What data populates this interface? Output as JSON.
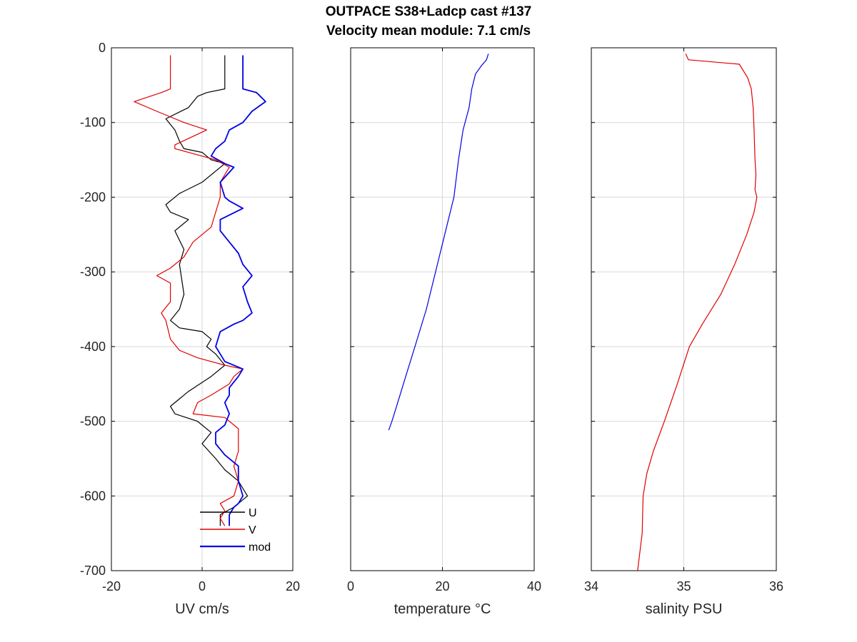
{
  "title_line1": "OUTPACE S38+Ladcp cast #137",
  "title_line2": "Velocity mean module:  7.1 cm/s",
  "colors": {
    "u": "#000000",
    "v": "#e00000",
    "mod": "#0000e6",
    "temperature": "#0000e6",
    "salinity": "#e00000",
    "grid": "#d9d9d9",
    "axes": "#000000"
  },
  "chart_data": [
    {
      "type": "line",
      "xlabel": "UV cm/s",
      "ylabel": "",
      "xlim": [
        -20,
        20
      ],
      "ylim": [
        -700,
        0
      ],
      "xticks": [
        -20,
        0,
        20
      ],
      "yticks": [
        0,
        -100,
        -200,
        -300,
        -400,
        -500,
        -600,
        -700
      ],
      "grid": true,
      "legend": "bottom-right",
      "series": [
        {
          "name": "U",
          "color": "#000000",
          "linewidth": 1.2,
          "points": [
            [
              5,
              -10
            ],
            [
              5,
              -55
            ],
            [
              1,
              -60
            ],
            [
              -1,
              -65
            ],
            [
              -3,
              -80
            ],
            [
              -8,
              -95
            ],
            [
              -6,
              -110
            ],
            [
              -5,
              -125
            ],
            [
              -4,
              -135
            ],
            [
              0,
              -140
            ],
            [
              2,
              -150
            ],
            [
              5,
              -155
            ],
            [
              0,
              -180
            ],
            [
              -5,
              -195
            ],
            [
              -8,
              -210
            ],
            [
              -7,
              -220
            ],
            [
              -3,
              -230
            ],
            [
              -6,
              -245
            ],
            [
              -4,
              -270
            ],
            [
              -5,
              -290
            ],
            [
              -4,
              -330
            ],
            [
              -5,
              -350
            ],
            [
              -7,
              -365
            ],
            [
              -5,
              -375
            ],
            [
              0,
              -380
            ],
            [
              2,
              -390
            ],
            [
              1,
              -400
            ],
            [
              3,
              -410
            ],
            [
              5,
              -425
            ],
            [
              2,
              -440
            ],
            [
              -3,
              -460
            ],
            [
              -7,
              -480
            ],
            [
              -6,
              -490
            ],
            [
              -1,
              -500
            ],
            [
              2,
              -515
            ],
            [
              0,
              -530
            ],
            [
              3,
              -550
            ],
            [
              5,
              -565
            ],
            [
              8,
              -580
            ],
            [
              10,
              -600
            ],
            [
              8,
              -610
            ],
            [
              7,
              -615
            ],
            [
              4,
              -625
            ],
            [
              4,
              -640
            ]
          ]
        },
        {
          "name": "V",
          "color": "#e00000",
          "linewidth": 1.2,
          "points": [
            [
              -7,
              -10
            ],
            [
              -7,
              -55
            ],
            [
              -9,
              -60
            ],
            [
              -15,
              -72
            ],
            [
              -10,
              -85
            ],
            [
              -4,
              -100
            ],
            [
              1,
              -110
            ],
            [
              -6,
              -130
            ],
            [
              -6,
              -135
            ],
            [
              3,
              -150
            ],
            [
              6,
              -160
            ],
            [
              4,
              -180
            ],
            [
              4,
              -200
            ],
            [
              3,
              -220
            ],
            [
              2,
              -240
            ],
            [
              0,
              -250
            ],
            [
              -2,
              -260
            ],
            [
              -4,
              -280
            ],
            [
              -7,
              -295
            ],
            [
              -10,
              -305
            ],
            [
              -7,
              -315
            ],
            [
              -7,
              -340
            ],
            [
              -9,
              -355
            ],
            [
              -8,
              -365
            ],
            [
              -7,
              -390
            ],
            [
              -5,
              -405
            ],
            [
              -1,
              -415
            ],
            [
              5,
              -425
            ],
            [
              9,
              -430
            ],
            [
              7,
              -440
            ],
            [
              6,
              -450
            ],
            [
              2,
              -465
            ],
            [
              -1,
              -475
            ],
            [
              -2,
              -490
            ],
            [
              5,
              -495
            ],
            [
              8,
              -510
            ],
            [
              8,
              -540
            ],
            [
              7,
              -560
            ],
            [
              8,
              -580
            ],
            [
              7,
              -600
            ],
            [
              4,
              -610
            ],
            [
              5,
              -620
            ],
            [
              4,
              -630
            ],
            [
              5,
              -640
            ]
          ]
        },
        {
          "name": "mod",
          "color": "#0000e6",
          "linewidth": 1.8,
          "points": [
            [
              9,
              -10
            ],
            [
              9,
              -55
            ],
            [
              12,
              -60
            ],
            [
              14,
              -72
            ],
            [
              11,
              -85
            ],
            [
              9,
              -100
            ],
            [
              6,
              -110
            ],
            [
              5,
              -125
            ],
            [
              3,
              -135
            ],
            [
              2,
              -145
            ],
            [
              5,
              -155
            ],
            [
              7,
              -160
            ],
            [
              4,
              -180
            ],
            [
              5,
              -200
            ],
            [
              6,
              -205
            ],
            [
              9,
              -215
            ],
            [
              4,
              -230
            ],
            [
              4,
              -245
            ],
            [
              6,
              -260
            ],
            [
              8,
              -275
            ],
            [
              9,
              -290
            ],
            [
              11,
              -305
            ],
            [
              9,
              -320
            ],
            [
              10,
              -340
            ],
            [
              11,
              -355
            ],
            [
              9,
              -365
            ],
            [
              7,
              -370
            ],
            [
              4,
              -380
            ],
            [
              3,
              -400
            ],
            [
              4,
              -410
            ],
            [
              5,
              -420
            ],
            [
              9,
              -430
            ],
            [
              8,
              -440
            ],
            [
              6,
              -455
            ],
            [
              6,
              -465
            ],
            [
              5,
              -475
            ],
            [
              6,
              -490
            ],
            [
              5,
              -505
            ],
            [
              3,
              -515
            ],
            [
              3,
              -530
            ],
            [
              5,
              -545
            ],
            [
              6,
              -550
            ],
            [
              8,
              -560
            ],
            [
              8,
              -580
            ],
            [
              9,
              -600
            ],
            [
              8,
              -610
            ],
            [
              7,
              -615
            ],
            [
              6,
              -625
            ],
            [
              6,
              -640
            ]
          ]
        }
      ]
    },
    {
      "type": "line",
      "xlabel": "temperature °C",
      "ylabel": "",
      "xlim": [
        0,
        40
      ],
      "ylim": [
        -700,
        0
      ],
      "xticks": [
        0,
        20,
        40
      ],
      "grid": true,
      "series": [
        {
          "color": "#0000e6",
          "linewidth": 1.2,
          "points": [
            [
              30,
              -8
            ],
            [
              29.6,
              -16
            ],
            [
              28.5,
              -24
            ],
            [
              27.2,
              -35
            ],
            [
              26.4,
              -55
            ],
            [
              25.8,
              -80
            ],
            [
              24.5,
              -110
            ],
            [
              23.5,
              -150
            ],
            [
              22.5,
              -200
            ],
            [
              20.5,
              -250
            ],
            [
              18.5,
              -300
            ],
            [
              16.5,
              -350
            ],
            [
              14,
              -400
            ],
            [
              12,
              -440
            ],
            [
              10,
              -480
            ],
            [
              9,
              -500
            ],
            [
              8.3,
              -512
            ]
          ]
        }
      ]
    },
    {
      "type": "line",
      "xlabel": "salinity PSU",
      "ylabel": "",
      "xlim": [
        34,
        36
      ],
      "ylim": [
        -700,
        0
      ],
      "xticks": [
        34,
        35,
        36
      ],
      "grid": true,
      "series": [
        {
          "color": "#e00000",
          "linewidth": 1.2,
          "points": [
            [
              35.02,
              -8
            ],
            [
              35.05,
              -16
            ],
            [
              35.6,
              -22
            ],
            [
              35.69,
              -40
            ],
            [
              35.73,
              -55
            ],
            [
              35.75,
              -80
            ],
            [
              35.76,
              -110
            ],
            [
              35.77,
              -150
            ],
            [
              35.78,
              -170
            ],
            [
              35.77,
              -190
            ],
            [
              35.79,
              -200
            ],
            [
              35.76,
              -220
            ],
            [
              35.68,
              -250
            ],
            [
              35.55,
              -290
            ],
            [
              35.4,
              -330
            ],
            [
              35.2,
              -370
            ],
            [
              35.06,
              -400
            ],
            [
              34.93,
              -450
            ],
            [
              34.79,
              -500
            ],
            [
              34.67,
              -540
            ],
            [
              34.6,
              -570
            ],
            [
              34.56,
              -600
            ],
            [
              34.55,
              -650
            ],
            [
              34.5,
              -700
            ]
          ]
        }
      ]
    }
  ]
}
